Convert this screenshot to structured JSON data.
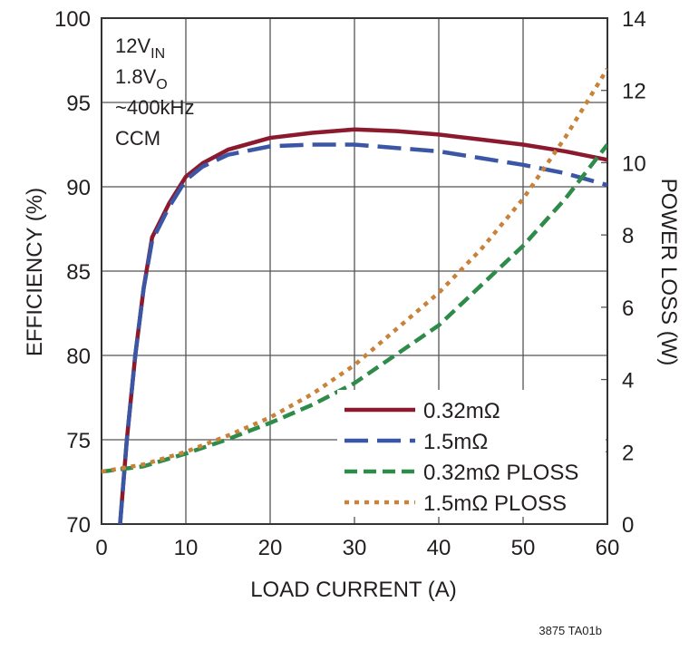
{
  "chart_data": {
    "type": "line",
    "xlabel": "LOAD CURRENT (A)",
    "ylabel": "EFFICIENCY (%)",
    "y2label": "POWER LOSS (W)",
    "xlim": [
      0,
      60
    ],
    "ylim": [
      70,
      100
    ],
    "y2lim": [
      0,
      14
    ],
    "xticks": [
      "0",
      "10",
      "20",
      "30",
      "40",
      "50",
      "60"
    ],
    "yticks": [
      "70",
      "75",
      "80",
      "85",
      "90",
      "95",
      "100"
    ],
    "y2ticks": [
      "0",
      "2",
      "4",
      "6",
      "8",
      "10",
      "12",
      "14"
    ],
    "grid": true,
    "legend_placement": "bottom-right",
    "annotation": [
      "12V",
      "IN",
      "1.8V",
      "O",
      "~400kHz",
      "CCM"
    ],
    "footnote": "3875 TA01b",
    "series": [
      {
        "name": "0.32mΩ",
        "axis": "left",
        "color": "#8b1a2e",
        "style": "solid",
        "x": [
          2.2,
          3,
          4,
          5,
          6,
          8,
          10,
          12,
          15,
          20,
          25,
          30,
          35,
          40,
          45,
          50,
          55,
          60
        ],
        "y": [
          70,
          75,
          80,
          84,
          87,
          89,
          90.6,
          91.4,
          92.2,
          92.9,
          93.2,
          93.4,
          93.3,
          93.1,
          92.8,
          92.5,
          92.1,
          91.6
        ]
      },
      {
        "name": "1.5mΩ",
        "axis": "left",
        "color": "#3a56a5",
        "style": "longdash",
        "x": [
          2.2,
          3,
          4,
          5,
          6,
          8,
          10,
          12,
          15,
          20,
          25,
          30,
          35,
          40,
          45,
          50,
          55,
          60
        ],
        "y": [
          70,
          75,
          80,
          84,
          86.8,
          88.8,
          90.4,
          91.2,
          91.9,
          92.4,
          92.5,
          92.5,
          92.3,
          92.1,
          91.7,
          91.3,
          90.8,
          90.1
        ]
      },
      {
        "name": "0.32mΩ PLOSS",
        "axis": "right",
        "color": "#2e8b4a",
        "style": "dash",
        "x": [
          0,
          5,
          10,
          15,
          20,
          25,
          30,
          35,
          40,
          45,
          50,
          55,
          60
        ],
        "y": [
          1.45,
          1.6,
          1.95,
          2.35,
          2.8,
          3.3,
          3.9,
          4.7,
          5.5,
          6.6,
          7.7,
          9.0,
          10.5
        ]
      },
      {
        "name": "1.5mΩ PLOSS",
        "axis": "right",
        "color": "#c8823a",
        "style": "dot",
        "x": [
          0,
          5,
          10,
          15,
          20,
          25,
          30,
          35,
          40,
          45,
          50,
          55,
          60
        ],
        "y": [
          1.45,
          1.65,
          2.0,
          2.45,
          2.95,
          3.6,
          4.4,
          5.4,
          6.4,
          7.6,
          9.0,
          10.7,
          12.6
        ]
      }
    ]
  }
}
